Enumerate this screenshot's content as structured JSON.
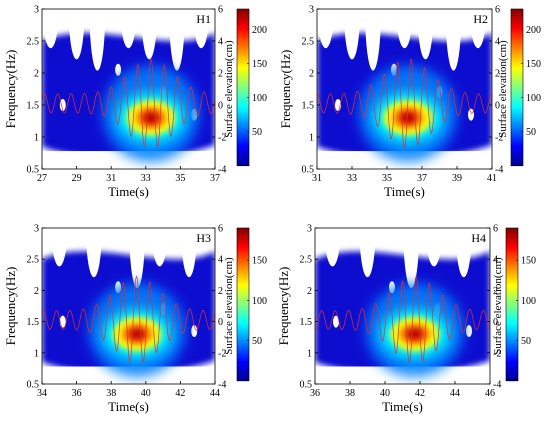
{
  "colormap": [
    "#00008f",
    "#0000ff",
    "#0080ff",
    "#00ffff",
    "#80ff80",
    "#ffff00",
    "#ff8000",
    "#ff0000",
    "#800000"
  ],
  "series_color": "#e03030",
  "chart_data": [
    {
      "type": "heatmap",
      "title": "H1",
      "xlabel": "Time(s)",
      "ylabel": "Frequency(Hz)",
      "right_ylabel": "Surface elevation(cm)",
      "xlim": [
        27,
        37
      ],
      "ylim": [
        0.5,
        3
      ],
      "right_ylim": [
        -4,
        6
      ],
      "xticks": [
        "27",
        "29",
        "31",
        "33",
        "35",
        "37"
      ],
      "yticks": [
        "0.5",
        "1",
        "1.5",
        "2",
        "2.5",
        "3"
      ],
      "right_yticks": [
        "-4",
        "-2",
        "0",
        "2",
        "4",
        "6"
      ],
      "colorbar_range": [
        0,
        230
      ],
      "colorbar_ticks": [
        "50",
        "100",
        "150",
        "200"
      ],
      "peak": {
        "x": 33.3,
        "y": 1.3,
        "value": 220
      },
      "wave_period_s": 0.77
    },
    {
      "type": "heatmap",
      "title": "H2",
      "xlabel": "Time(s)",
      "ylabel": "Frequency(Hz)",
      "right_ylabel": "Surface elevation(cm)",
      "xlim": [
        31,
        41
      ],
      "ylim": [
        0.5,
        3
      ],
      "right_ylim": [
        -4,
        6
      ],
      "xticks": [
        "31",
        "33",
        "35",
        "37",
        "39",
        "41"
      ],
      "yticks": [
        "0.5",
        "1",
        "1.5",
        "2",
        "2.5",
        "3"
      ],
      "right_yticks": [
        "-4",
        "-2",
        "0",
        "2",
        "4",
        "6"
      ],
      "colorbar_range": [
        0,
        230
      ],
      "colorbar_ticks": [
        "50",
        "100",
        "150",
        "200"
      ],
      "peak": {
        "x": 36.2,
        "y": 1.3,
        "value": 220
      },
      "wave_period_s": 0.77
    },
    {
      "type": "heatmap",
      "title": "H3",
      "xlabel": "Time(s)",
      "ylabel": "Frequency(Hz)",
      "right_ylabel": "Surface elevation(cm)",
      "xlim": [
        34,
        44
      ],
      "ylim": [
        0.5,
        3
      ],
      "right_ylim": [
        -4,
        6
      ],
      "xticks": [
        "34",
        "36",
        "38",
        "40",
        "42",
        "44"
      ],
      "yticks": [
        "0.5",
        "1",
        "1.5",
        "2",
        "2.5",
        "3"
      ],
      "right_yticks": [
        "-4",
        "-2",
        "0",
        "2",
        "4",
        "6"
      ],
      "colorbar_range": [
        0,
        190
      ],
      "colorbar_ticks": [
        "50",
        "100",
        "150"
      ],
      "peak": {
        "x": 39.5,
        "y": 1.3,
        "value": 180
      },
      "wave_period_s": 0.77
    },
    {
      "type": "heatmap",
      "title": "H4",
      "xlabel": "Time(s)",
      "ylabel": "Frequency(Hz)",
      "right_ylabel": "Surface elevation(cm)",
      "xlim": [
        36,
        46
      ],
      "ylim": [
        0.5,
        3
      ],
      "right_ylim": [
        -4,
        6
      ],
      "xticks": [
        "36",
        "38",
        "40",
        "42",
        "44",
        "46"
      ],
      "yticks": [
        "0.5",
        "1",
        "1.5",
        "2",
        "2.5",
        "3"
      ],
      "right_yticks": [
        "-4",
        "-2",
        "0",
        "2",
        "4",
        "6"
      ],
      "colorbar_range": [
        0,
        190
      ],
      "colorbar_ticks": [
        "50",
        "100",
        "150"
      ],
      "peak": {
        "x": 41.7,
        "y": 1.3,
        "value": 180
      },
      "wave_period_s": 0.77
    }
  ]
}
